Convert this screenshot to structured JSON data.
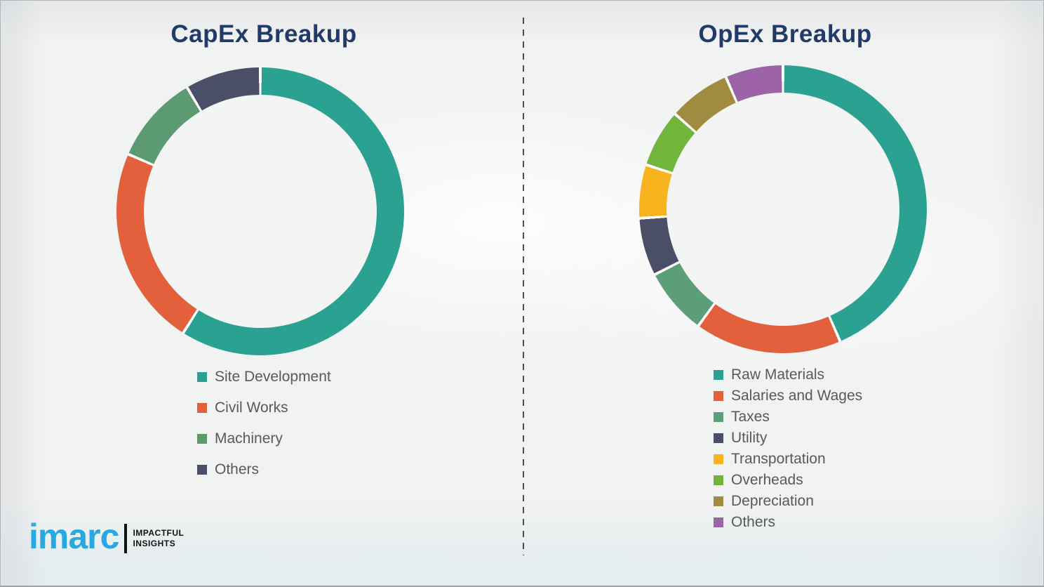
{
  "chart_data": [
    {
      "type": "pie",
      "subtype": "donut",
      "title": "CapEx Breakup",
      "labels": [
        "Site Development",
        "Civil Works",
        "Machinery",
        "Others"
      ],
      "values": [
        59,
        22.5,
        10,
        8.5
      ],
      "values_note": "percent share estimated from arc angles; no numeric labels shown in image",
      "colors": [
        "#2aa191",
        "#e2613c",
        "#5c9b72",
        "#4a4f67"
      ],
      "start_angle_deg": 0,
      "direction": "clockwise",
      "legend_position": "below"
    },
    {
      "type": "pie",
      "subtype": "donut",
      "title": "OpEx Breakup",
      "labels": [
        "Raw Materials",
        "Salaries and Wages",
        "Taxes",
        "Utility",
        "Transportation",
        "Overheads",
        "Depreciation",
        "Others"
      ],
      "values": [
        43.5,
        16.5,
        7.5,
        6.5,
        6,
        6.5,
        7,
        6.5
      ],
      "values_note": "percent share estimated from arc angles; no numeric labels shown in image",
      "colors": [
        "#2aa191",
        "#e2613c",
        "#5c9e78",
        "#4a4f67",
        "#f8b41f",
        "#71b53c",
        "#a18b41",
        "#9c64a6"
      ],
      "start_angle_deg": 0,
      "direction": "clockwise",
      "legend_position": "below"
    }
  ],
  "divider_style": "vertical-dashed",
  "title_color": "#223a6b",
  "legend_text_color": "#595959",
  "background_color": "#f1f2f2",
  "logo": {
    "brand": "imarc",
    "tagline_line1": "IMPACTFUL",
    "tagline_line2": "INSIGHTS",
    "brand_color": "#29a9e1"
  }
}
